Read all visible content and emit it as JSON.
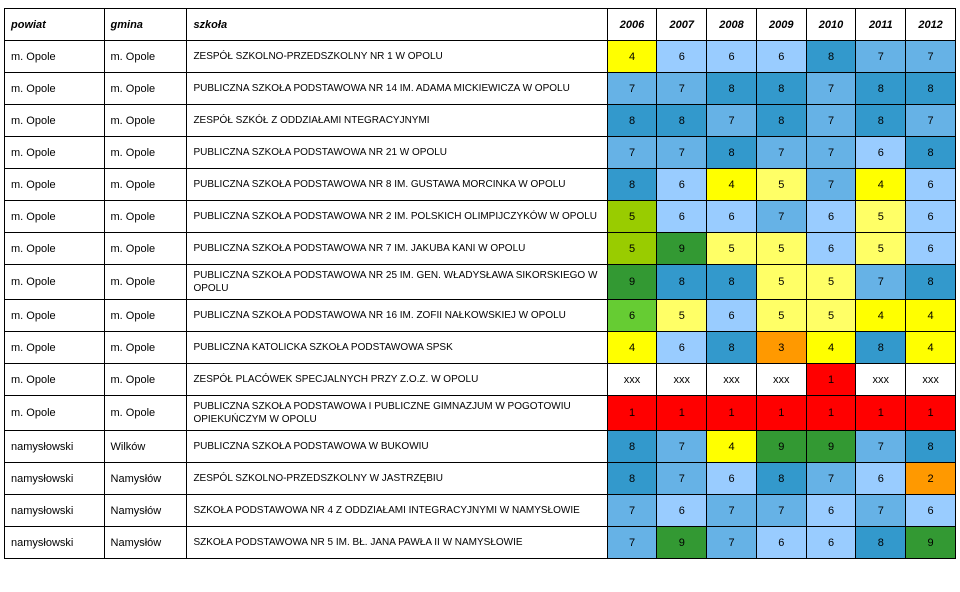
{
  "columns": {
    "powiat": "powiat",
    "gmina": "gmina",
    "szkola": "szkoła",
    "years": [
      "2006",
      "2007",
      "2008",
      "2009",
      "2010",
      "2011",
      "2012"
    ]
  },
  "colors": {
    "none": "#ffffff",
    "yellow_bright": "#ffff00",
    "yellow": "#ffff66",
    "blue_light": "#99ccff",
    "blue_mid": "#66b2e6",
    "blue_dark": "#3399cc",
    "green_olive": "#99cc00",
    "green_mid": "#66cc33",
    "green_dark": "#339933",
    "red": "#ff0000",
    "orange": "#ff9900"
  },
  "rows": [
    {
      "powiat": "m. Opole",
      "gmina": "m. Opole",
      "szkola": "ZESPÓŁ SZKOLNO-PRZEDSZKOLNY NR 1 W OPOLU",
      "cells": [
        {
          "v": "4",
          "c": "yellow_bright"
        },
        {
          "v": "6",
          "c": "blue_light"
        },
        {
          "v": "6",
          "c": "blue_light"
        },
        {
          "v": "6",
          "c": "blue_light"
        },
        {
          "v": "8",
          "c": "blue_dark"
        },
        {
          "v": "7",
          "c": "blue_mid"
        },
        {
          "v": "7",
          "c": "blue_mid"
        }
      ]
    },
    {
      "powiat": "m. Opole",
      "gmina": "m. Opole",
      "szkola": "PUBLICZNA SZKOŁA PODSTAWOWA NR 14 IM. ADAMA MICKIEWICZA W OPOLU",
      "cells": [
        {
          "v": "7",
          "c": "blue_mid"
        },
        {
          "v": "7",
          "c": "blue_mid"
        },
        {
          "v": "8",
          "c": "blue_dark"
        },
        {
          "v": "8",
          "c": "blue_dark"
        },
        {
          "v": "7",
          "c": "blue_mid"
        },
        {
          "v": "8",
          "c": "blue_dark"
        },
        {
          "v": "8",
          "c": "blue_dark"
        }
      ]
    },
    {
      "powiat": "m. Opole",
      "gmina": "m. Opole",
      "szkola": "ZESPÓŁ SZKÓŁ Z ODDZIAŁAMI NTEGRACYJNYMI",
      "cells": [
        {
          "v": "8",
          "c": "blue_dark"
        },
        {
          "v": "8",
          "c": "blue_dark"
        },
        {
          "v": "7",
          "c": "blue_mid"
        },
        {
          "v": "8",
          "c": "blue_dark"
        },
        {
          "v": "7",
          "c": "blue_mid"
        },
        {
          "v": "8",
          "c": "blue_dark"
        },
        {
          "v": "7",
          "c": "blue_mid"
        }
      ]
    },
    {
      "powiat": "m. Opole",
      "gmina": "m. Opole",
      "szkola": "PUBLICZNA SZKOŁA PODSTAWOWA NR 21 W OPOLU",
      "cells": [
        {
          "v": "7",
          "c": "blue_mid"
        },
        {
          "v": "7",
          "c": "blue_mid"
        },
        {
          "v": "8",
          "c": "blue_dark"
        },
        {
          "v": "7",
          "c": "blue_mid"
        },
        {
          "v": "7",
          "c": "blue_mid"
        },
        {
          "v": "6",
          "c": "blue_light"
        },
        {
          "v": "8",
          "c": "blue_dark"
        }
      ]
    },
    {
      "powiat": "m. Opole",
      "gmina": "m. Opole",
      "szkola": "PUBLICZNA SZKOŁA PODSTAWOWA NR 8 IM. GUSTAWA MORCINKA W OPOLU",
      "cells": [
        {
          "v": "8",
          "c": "blue_dark"
        },
        {
          "v": "6",
          "c": "blue_light"
        },
        {
          "v": "4",
          "c": "yellow_bright"
        },
        {
          "v": "5",
          "c": "yellow"
        },
        {
          "v": "7",
          "c": "blue_mid"
        },
        {
          "v": "4",
          "c": "yellow_bright"
        },
        {
          "v": "6",
          "c": "blue_light"
        }
      ]
    },
    {
      "powiat": "m. Opole",
      "gmina": "m. Opole",
      "szkola": "PUBLICZNA SZKOŁA PODSTAWOWA NR 2 IM. POLSKICH OLIMPIJCZYKÓW W OPOLU",
      "cells": [
        {
          "v": "5",
          "c": "green_olive"
        },
        {
          "v": "6",
          "c": "blue_light"
        },
        {
          "v": "6",
          "c": "blue_light"
        },
        {
          "v": "7",
          "c": "blue_mid"
        },
        {
          "v": "6",
          "c": "blue_light"
        },
        {
          "v": "5",
          "c": "yellow"
        },
        {
          "v": "6",
          "c": "blue_light"
        }
      ]
    },
    {
      "powiat": "m. Opole",
      "gmina": "m. Opole",
      "szkola": "PUBLICZNA SZKOŁA PODSTAWOWA NR 7 IM. JAKUBA KANI W OPOLU",
      "cells": [
        {
          "v": "5",
          "c": "green_olive"
        },
        {
          "v": "9",
          "c": "green_dark"
        },
        {
          "v": "5",
          "c": "yellow"
        },
        {
          "v": "5",
          "c": "yellow"
        },
        {
          "v": "6",
          "c": "blue_light"
        },
        {
          "v": "5",
          "c": "yellow"
        },
        {
          "v": "6",
          "c": "blue_light"
        }
      ]
    },
    {
      "powiat": "m. Opole",
      "gmina": "m. Opole",
      "szkola": "PUBLICZNA SZKOŁA PODSTAWOWA NR 25 IM. GEN. WŁADYSŁAWA SIKORSKIEGO W OPOLU",
      "cells": [
        {
          "v": "9",
          "c": "green_dark"
        },
        {
          "v": "8",
          "c": "blue_dark"
        },
        {
          "v": "8",
          "c": "blue_dark"
        },
        {
          "v": "5",
          "c": "yellow"
        },
        {
          "v": "5",
          "c": "yellow"
        },
        {
          "v": "7",
          "c": "blue_mid"
        },
        {
          "v": "8",
          "c": "blue_dark"
        }
      ]
    },
    {
      "powiat": "m. Opole",
      "gmina": "m. Opole",
      "szkola": "PUBLICZNA SZKOŁA PODSTAWOWA NR 16 IM. ZOFII NAŁKOWSKIEJ W OPOLU",
      "cells": [
        {
          "v": "6",
          "c": "green_mid"
        },
        {
          "v": "5",
          "c": "yellow"
        },
        {
          "v": "6",
          "c": "blue_light"
        },
        {
          "v": "5",
          "c": "yellow"
        },
        {
          "v": "5",
          "c": "yellow"
        },
        {
          "v": "4",
          "c": "yellow_bright"
        },
        {
          "v": "4",
          "c": "yellow_bright"
        }
      ]
    },
    {
      "powiat": "m. Opole",
      "gmina": "m. Opole",
      "szkola": "PUBLICZNA KATOLICKA SZKOŁA PODSTAWOWA SPSK",
      "cells": [
        {
          "v": "4",
          "c": "yellow_bright"
        },
        {
          "v": "6",
          "c": "blue_light"
        },
        {
          "v": "8",
          "c": "blue_dark"
        },
        {
          "v": "3",
          "c": "orange"
        },
        {
          "v": "4",
          "c": "yellow_bright"
        },
        {
          "v": "8",
          "c": "blue_dark"
        },
        {
          "v": "4",
          "c": "yellow_bright"
        }
      ]
    },
    {
      "powiat": "m. Opole",
      "gmina": "m. Opole",
      "szkola": "ZESPÓŁ PLACÓWEK SPECJALNYCH PRZY Z.O.Z. W OPOLU",
      "cells": [
        {
          "v": "xxx",
          "c": "none"
        },
        {
          "v": "xxx",
          "c": "none"
        },
        {
          "v": "xxx",
          "c": "none"
        },
        {
          "v": "xxx",
          "c": "none"
        },
        {
          "v": "1",
          "c": "red"
        },
        {
          "v": "xxx",
          "c": "none"
        },
        {
          "v": "xxx",
          "c": "none"
        }
      ]
    },
    {
      "powiat": "m. Opole",
      "gmina": "m. Opole",
      "szkola": "PUBLICZNA SZKOŁA PODSTAWOWA I PUBLICZNE GIMNAZJUM W POGOTOWIU OPIEKUŃCZYM W OPOLU",
      "cells": [
        {
          "v": "1",
          "c": "red"
        },
        {
          "v": "1",
          "c": "red"
        },
        {
          "v": "1",
          "c": "red"
        },
        {
          "v": "1",
          "c": "red"
        },
        {
          "v": "1",
          "c": "red"
        },
        {
          "v": "1",
          "c": "red"
        },
        {
          "v": "1",
          "c": "red"
        }
      ]
    },
    {
      "powiat": "namysłowski",
      "gmina": "Wilków",
      "szkola": "PUBLICZNA SZKOŁA PODSTAWOWA W BUKOWIU",
      "cells": [
        {
          "v": "8",
          "c": "blue_dark"
        },
        {
          "v": "7",
          "c": "blue_mid"
        },
        {
          "v": "4",
          "c": "yellow_bright"
        },
        {
          "v": "9",
          "c": "green_dark"
        },
        {
          "v": "9",
          "c": "green_dark"
        },
        {
          "v": "7",
          "c": "blue_mid"
        },
        {
          "v": "8",
          "c": "blue_dark"
        }
      ]
    },
    {
      "powiat": "namysłowski",
      "gmina": "Namysłów",
      "szkola": "ZESPÓL SZKOLNO-PRZEDSZKOLNY W JASTRZĘBIU",
      "cells": [
        {
          "v": "8",
          "c": "blue_dark"
        },
        {
          "v": "7",
          "c": "blue_mid"
        },
        {
          "v": "6",
          "c": "blue_light"
        },
        {
          "v": "8",
          "c": "blue_dark"
        },
        {
          "v": "7",
          "c": "blue_mid"
        },
        {
          "v": "6",
          "c": "blue_light"
        },
        {
          "v": "2",
          "c": "orange"
        }
      ]
    },
    {
      "powiat": "namysłowski",
      "gmina": "Namysłów",
      "szkola": "SZKOŁA PODSTAWOWA NR 4 Z ODDZIAŁAMI INTEGRACYJNYMI W NAMYSŁOWIE",
      "cells": [
        {
          "v": "7",
          "c": "blue_mid"
        },
        {
          "v": "6",
          "c": "blue_light"
        },
        {
          "v": "7",
          "c": "blue_mid"
        },
        {
          "v": "7",
          "c": "blue_mid"
        },
        {
          "v": "6",
          "c": "blue_light"
        },
        {
          "v": "7",
          "c": "blue_mid"
        },
        {
          "v": "6",
          "c": "blue_light"
        }
      ]
    },
    {
      "powiat": "namysłowski",
      "gmina": "Namysłów",
      "szkola": "SZKOŁA PODSTAWOWA NR 5 IM. BŁ. JANA PAWŁA II W NAMYSŁOWIE",
      "cells": [
        {
          "v": "7",
          "c": "blue_mid"
        },
        {
          "v": "9",
          "c": "green_dark"
        },
        {
          "v": "7",
          "c": "blue_mid"
        },
        {
          "v": "6",
          "c": "blue_light"
        },
        {
          "v": "6",
          "c": "blue_light"
        },
        {
          "v": "8",
          "c": "blue_dark"
        },
        {
          "v": "9",
          "c": "green_dark"
        }
      ]
    }
  ]
}
